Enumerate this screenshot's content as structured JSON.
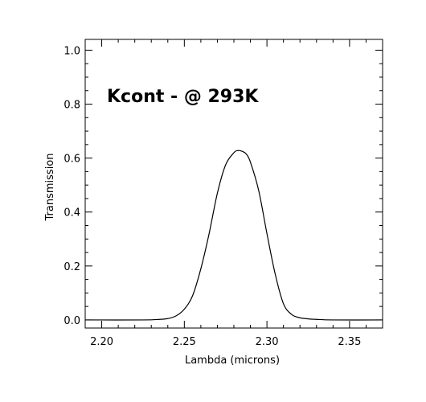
{
  "chart_data": {
    "type": "line",
    "xlabel": "Lambda (microns)",
    "ylabel": "Transmission",
    "annotation": "Kcont  -  @ 293K",
    "xlim": [
      2.19,
      2.37
    ],
    "ylim": [
      -0.03,
      1.04
    ],
    "x_ticks": [
      2.2,
      2.25,
      2.3,
      2.35
    ],
    "x_tick_labels": [
      "2.20",
      "2.25",
      "2.30",
      "2.35"
    ],
    "y_ticks": [
      0.0,
      0.2,
      0.4,
      0.6,
      0.8,
      1.0
    ],
    "y_tick_labels": [
      "0.0",
      "0.2",
      "0.4",
      "0.6",
      "0.8",
      "1.0"
    ],
    "grid": false,
    "legend": "none",
    "series": [
      {
        "x": [
          2.19,
          2.225,
          2.235,
          2.24,
          2.245,
          2.25,
          2.255,
          2.26,
          2.265,
          2.27,
          2.275,
          2.28,
          2.2825,
          2.285,
          2.2875,
          2.29,
          2.295,
          2.3,
          2.305,
          2.31,
          2.315,
          2.32,
          2.325,
          2.33,
          2.34,
          2.37
        ],
        "y": [
          0.0,
          0.0,
          0.002,
          0.005,
          0.015,
          0.04,
          0.09,
          0.19,
          0.32,
          0.47,
          0.575,
          0.62,
          0.628,
          0.625,
          0.615,
          0.585,
          0.48,
          0.32,
          0.17,
          0.06,
          0.02,
          0.008,
          0.004,
          0.002,
          0.0,
          0.0
        ]
      }
    ]
  }
}
